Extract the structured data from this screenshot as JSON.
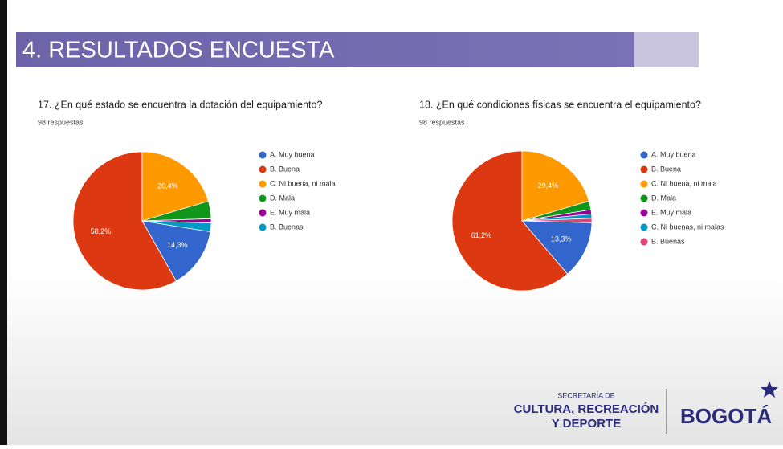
{
  "slide_title": "4.  RESULTADOS ENCUESTA",
  "logo": {
    "line1": "SECRETARÍA DE",
    "line2": "CULTURA, RECREACIÓN",
    "line3": "Y DEPORTE",
    "brand": "BOGOTÁ"
  },
  "chart_data": [
    {
      "type": "pie",
      "title": "17. ¿En qué estado se encuentra la dotación del equipamiento?",
      "subtitle": "98 respuestas",
      "categories": [
        "A. Muy buena",
        "B. Buena",
        "C. Ni buena, ni mala",
        "D. Mala",
        "E. Muy mala",
        "B. Buenas"
      ],
      "values": [
        14.3,
        58.2,
        20.4,
        4.1,
        1.0,
        2.0
      ],
      "value_labels": [
        "14,3%",
        "58,2%",
        "20,4%",
        null,
        null,
        null
      ],
      "colors": [
        "#3366cc",
        "#dc3912",
        "#ff9900",
        "#109618",
        "#990099",
        "#0099c6"
      ]
    },
    {
      "type": "pie",
      "title": "18. ¿En qué condiciones físicas se encuentra el equipamiento?",
      "subtitle": "98 respuestas",
      "categories": [
        "A. Muy buena",
        "B. Buena",
        "C. Ni buena, ni mala",
        "D. Mala",
        "E. Muy mala",
        "C. Ni buenas, ni malas",
        "B. Buenas"
      ],
      "values": [
        13.3,
        61.2,
        20.4,
        2.0,
        1.0,
        1.0,
        1.0
      ],
      "value_labels": [
        "13,3%",
        "61,2%",
        "20,4%",
        null,
        null,
        null,
        null
      ],
      "colors": [
        "#3366cc",
        "#dc3912",
        "#ff9900",
        "#109618",
        "#990099",
        "#0099c6",
        "#dd4477"
      ]
    }
  ]
}
